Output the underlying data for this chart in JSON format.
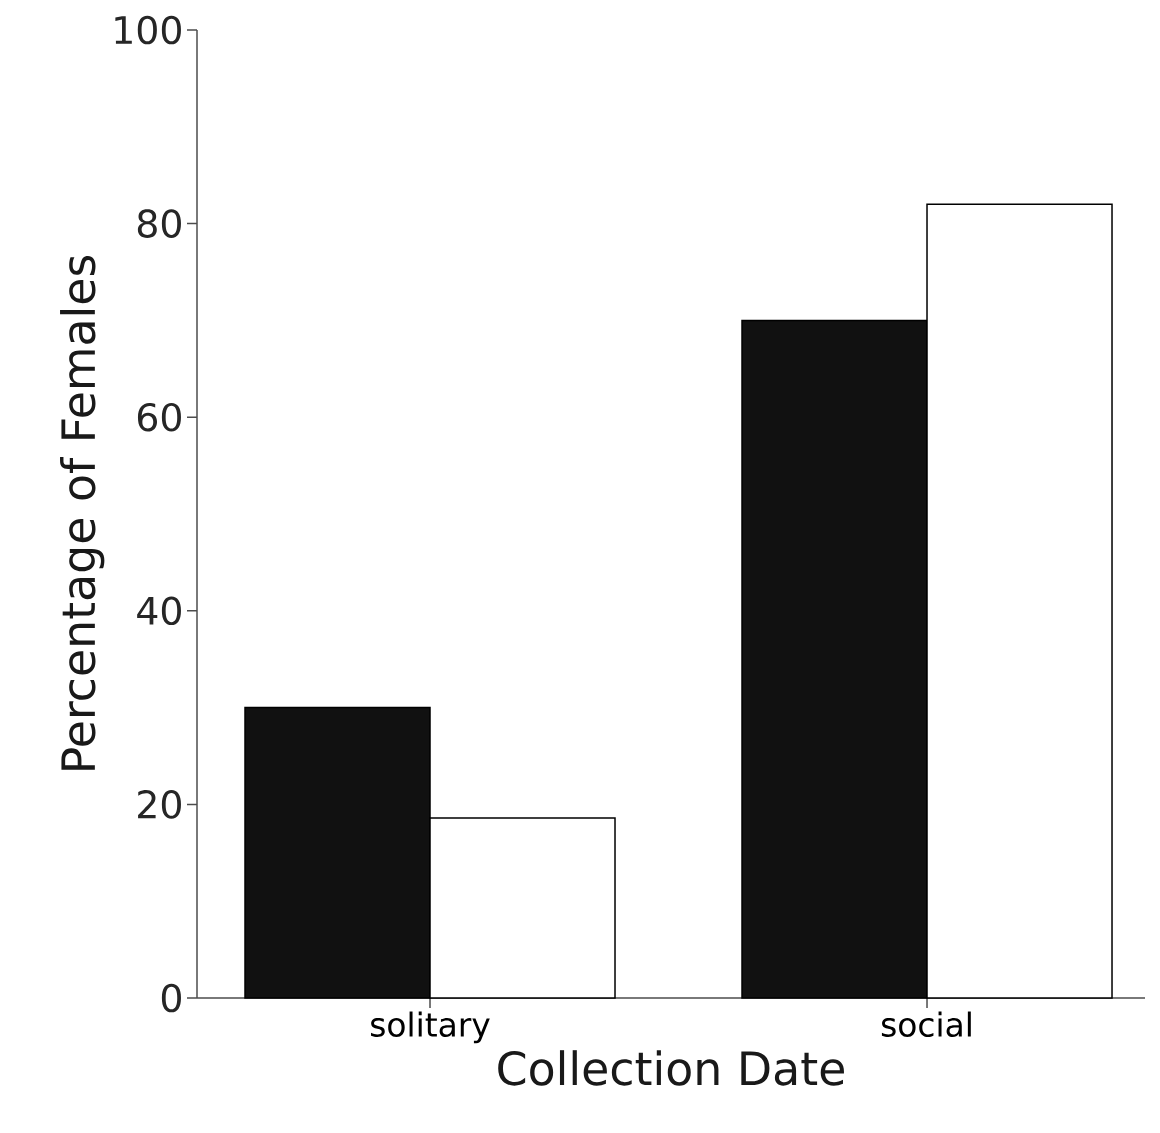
{
  "chart_data": {
    "type": "bar",
    "xlabel": "Collection Date",
    "ylabel": "Percentage of Females",
    "categories": [
      "solitary",
      "social"
    ],
    "series": [
      {
        "color": "#111111",
        "values": [
          30,
          70
        ]
      },
      {
        "color": "#ffffff",
        "values": [
          18.6,
          82
        ]
      }
    ],
    "ylim": [
      0,
      100
    ],
    "yticks": [
      0,
      20,
      40,
      60,
      80,
      100
    ]
  }
}
